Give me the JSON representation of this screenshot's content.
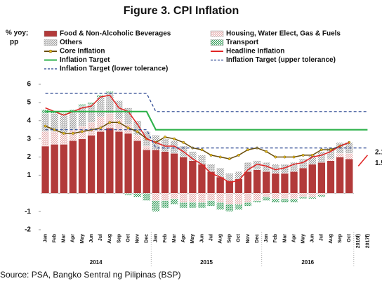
{
  "chart_data": {
    "type": "bar",
    "title": "Figure 3. CPI Inflation",
    "y_label": [
      "% yoy;",
      "pp"
    ],
    "source": "Source: PSA, Bangko Sentral ng Pilipinas (BSP)",
    "categories": [
      "Jan",
      "Feb",
      "Mar",
      "Apr",
      "May",
      "Jun",
      "Jul",
      "Aug",
      "Sep",
      "Oct",
      "Nov",
      "Dec",
      "Jan",
      "Feb",
      "Mar",
      "Apr",
      "May",
      "Jun",
      "Jul",
      "Aug",
      "Sep",
      "Oct",
      "Nov",
      "Dec",
      "Jan",
      "Feb",
      "Mar",
      "Apr",
      "May",
      "Jun",
      "Jul",
      "Aug",
      "Sep",
      "Oct",
      "2016f)",
      "2017f)"
    ],
    "year_labels": [
      "2014",
      "2015",
      "2016"
    ],
    "ylim": [
      -2,
      6
    ],
    "yticks": [
      -2,
      -1,
      1,
      2,
      3,
      4,
      5,
      6
    ],
    "series": [
      {
        "name": "Food & Non-Alcoholic Beverages",
        "kind": "bar",
        "color": "#b23a3a",
        "pattern": "solid",
        "values": [
          2.6,
          2.7,
          2.7,
          2.9,
          3.0,
          3.2,
          3.4,
          3.6,
          3.4,
          3.3,
          2.9,
          2.4,
          2.4,
          2.3,
          2.2,
          2.0,
          1.8,
          1.6,
          1.2,
          0.9,
          0.7,
          0.8,
          1.2,
          1.3,
          1.2,
          1.1,
          1.1,
          1.2,
          1.4,
          1.6,
          1.7,
          1.8,
          2.0,
          1.9,
          null,
          null
        ]
      },
      {
        "name": "Housing, Water Elect, Gas & Fuels",
        "kind": "bar",
        "color": "#e3a9a9",
        "pattern": "hatch",
        "values": [
          0.8,
          0.7,
          0.6,
          0.6,
          0.7,
          0.7,
          0.8,
          0.8,
          0.7,
          0.5,
          0.3,
          0.2,
          -0.4,
          -0.4,
          -0.3,
          -0.5,
          -0.5,
          -0.5,
          -0.4,
          -0.5,
          -0.6,
          -0.6,
          -0.5,
          -0.4,
          -0.2,
          -0.3,
          -0.3,
          -0.3,
          -0.2,
          -0.2,
          -0.1,
          0.1,
          0.2,
          0.3,
          null,
          null
        ]
      },
      {
        "name": "Others",
        "kind": "bar",
        "color": "#9a9a9a",
        "pattern": "hatch",
        "values": [
          1.0,
          1.0,
          1.0,
          1.0,
          1.1,
          1.0,
          1.1,
          1.1,
          1.0,
          0.9,
          0.8,
          0.8,
          0.8,
          0.7,
          0.7,
          0.6,
          0.5,
          0.5,
          0.4,
          0.5,
          0.4,
          0.4,
          0.5,
          0.5,
          0.5,
          0.5,
          0.5,
          0.5,
          0.5,
          0.5,
          0.6,
          0.6,
          0.6,
          0.6,
          null,
          null
        ]
      },
      {
        "name": "Transport",
        "kind": "bar",
        "color": "#2e9a55",
        "pattern": "hatch",
        "values": [
          0.2,
          0.1,
          0.1,
          0.1,
          0.1,
          0.1,
          0.1,
          0.1,
          0.0,
          -0.1,
          -0.2,
          -0.4,
          -0.6,
          -0.4,
          -0.3,
          -0.3,
          -0.3,
          -0.3,
          -0.3,
          -0.4,
          -0.4,
          -0.3,
          -0.2,
          -0.1,
          -0.2,
          -0.2,
          -0.2,
          -0.2,
          -0.1,
          -0.1,
          -0.1,
          0.0,
          0.0,
          0.0,
          null,
          null
        ]
      },
      {
        "name": "Core Inflation",
        "kind": "line",
        "color": "#6b4e0a",
        "marker": "#e8c020",
        "dash": "solid",
        "values": [
          3.7,
          3.5,
          3.3,
          3.3,
          3.4,
          3.5,
          3.6,
          3.9,
          3.9,
          3.6,
          3.4,
          3.0,
          2.8,
          3.1,
          3.0,
          2.8,
          2.5,
          2.4,
          2.1,
          2.0,
          1.9,
          2.1,
          2.4,
          2.5,
          2.3,
          2.0,
          2.0,
          2.0,
          2.1,
          2.1,
          2.4,
          2.4,
          2.6,
          2.8,
          null,
          null
        ]
      },
      {
        "name": "Headline Inflation",
        "kind": "line",
        "color": "#e02424",
        "dash": "solid",
        "values": [
          4.7,
          4.5,
          4.3,
          4.5,
          4.7,
          4.8,
          5.3,
          5.4,
          4.7,
          4.5,
          3.8,
          3.0,
          2.8,
          2.6,
          2.6,
          2.3,
          1.9,
          1.6,
          1.1,
          0.9,
          0.6,
          0.7,
          1.3,
          1.6,
          1.5,
          1.3,
          1.4,
          1.6,
          1.7,
          2.0,
          2.1,
          2.3,
          2.6,
          2.8,
          null,
          null
        ]
      },
      {
        "name": "Inflation Target",
        "kind": "line",
        "color": "#2fb24c",
        "dash": "solid",
        "values": [
          4.5,
          4.5,
          4.5,
          4.5,
          4.5,
          4.5,
          4.5,
          4.5,
          4.5,
          4.5,
          4.5,
          4.5,
          3.5,
          3.5,
          3.5,
          3.5,
          3.5,
          3.5,
          3.5,
          3.5,
          3.5,
          3.5,
          3.5,
          3.5,
          3.5,
          3.5,
          3.5,
          3.5,
          3.5,
          3.5,
          3.5,
          3.5,
          3.5,
          3.5,
          3.5,
          3.5
        ]
      },
      {
        "name": "Inflation Target (upper tolerance)",
        "kind": "line",
        "color": "#24408e",
        "dash": "dash",
        "values": [
          5.5,
          5.5,
          5.5,
          5.5,
          5.5,
          5.5,
          5.5,
          5.5,
          5.5,
          5.5,
          5.5,
          5.5,
          4.5,
          4.5,
          4.5,
          4.5,
          4.5,
          4.5,
          4.5,
          4.5,
          4.5,
          4.5,
          4.5,
          4.5,
          4.5,
          4.5,
          4.5,
          4.5,
          4.5,
          4.5,
          4.5,
          4.5,
          4.5,
          4.5,
          4.5,
          4.5
        ]
      },
      {
        "name": "Inflation Target (lower tolerance)",
        "kind": "line",
        "color": "#24408e",
        "dash": "dash",
        "values": [
          3.5,
          3.5,
          3.5,
          3.5,
          3.5,
          3.5,
          3.5,
          3.5,
          3.5,
          3.5,
          3.5,
          3.5,
          2.5,
          2.5,
          2.5,
          2.5,
          2.5,
          2.5,
          2.5,
          2.5,
          2.5,
          2.5,
          2.5,
          2.5,
          2.5,
          2.5,
          2.5,
          2.5,
          2.5,
          2.5,
          2.5,
          2.5,
          2.5,
          2.5,
          2.5,
          2.5
        ]
      },
      {
        "name": "Headline forecast",
        "kind": "forecast",
        "color": "#e02424",
        "dash": "solid",
        "values": [
          null,
          null,
          null,
          null,
          null,
          null,
          null,
          null,
          null,
          null,
          null,
          null,
          null,
          null,
          null,
          null,
          null,
          null,
          null,
          null,
          null,
          null,
          null,
          null,
          null,
          null,
          null,
          null,
          null,
          null,
          null,
          null,
          null,
          null,
          1.5,
          2.1
        ]
      }
    ]
  }
}
